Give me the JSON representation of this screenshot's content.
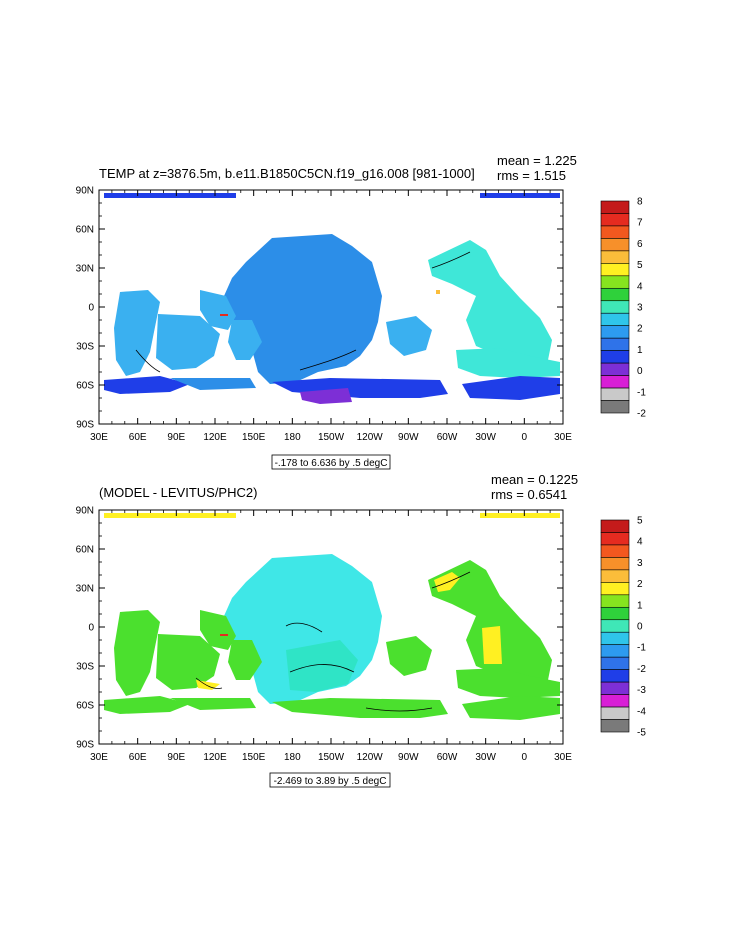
{
  "panels": [
    {
      "title": "TEMP at z=3876.5m, b.e11.B1850C5CN.f19_g16.008 [981-1000]",
      "mean": "mean = 1.225",
      "rms": "rms = 1.515",
      "range_text": "-.178 to 6.636 by .5 degC",
      "colorbar": {
        "labels": [
          "8",
          "7",
          "6",
          "5",
          "4",
          "3",
          "2",
          "1",
          "0",
          "-1",
          "-2"
        ],
        "colors": [
          "#c41b1b",
          "#e52b20",
          "#f2581f",
          "#f7902a",
          "#fbbd3a",
          "#fff022",
          "#86e41f",
          "#2fd13b",
          "#3fe7b7",
          "#2fc5ea",
          "#2d9bf0",
          "#2f73e9",
          "#1f3ee8",
          "#7d2fd6",
          "#d81fd6",
          "#c9c9c9",
          "#7a7a7a"
        ]
      }
    },
    {
      "title": "(MODEL - LEVITUS/PHC2)",
      "mean": "mean = 0.1225",
      "rms": "rms = 0.6541",
      "range_text": "-2.469 to 3.89 by .5 degC",
      "colorbar": {
        "labels": [
          "5",
          "4",
          "3",
          "2",
          "1",
          "0",
          "-1",
          "-2",
          "-3",
          "-4",
          "-5"
        ],
        "colors": [
          "#c41b1b",
          "#e52b20",
          "#f2581f",
          "#f7902a",
          "#fbbd3a",
          "#fff022",
          "#86e41f",
          "#2fd13b",
          "#3fe7b7",
          "#2fc5ea",
          "#2d9bf0",
          "#2f73e9",
          "#1f3ee8",
          "#7d2fd6",
          "#d81fd6",
          "#c9c9c9",
          "#7a7a7a"
        ]
      }
    }
  ],
  "axes": {
    "lat_labels": [
      "90N",
      "60N",
      "30N",
      "0",
      "30S",
      "60S",
      "90S"
    ],
    "lon_labels": [
      "30E",
      "60E",
      "90E",
      "120E",
      "150E",
      "180",
      "150W",
      "120W",
      "90W",
      "60W",
      "30W",
      "0",
      "30E"
    ]
  },
  "colors": {
    "p1_blue_main": "#2c8ee8",
    "p1_cyan": "#3fe7d8",
    "p1_dark_blue": "#1f3ee8",
    "p1_purple": "#7d2fd6",
    "p1_yellow": "#fff022",
    "p1_lightblue": "#3ab0f0",
    "p2_cyan": "#3fe7e7",
    "p2_green": "#4be02e",
    "p2_yellow": "#fff022",
    "p2_lightcyan": "#2fe4c6"
  }
}
